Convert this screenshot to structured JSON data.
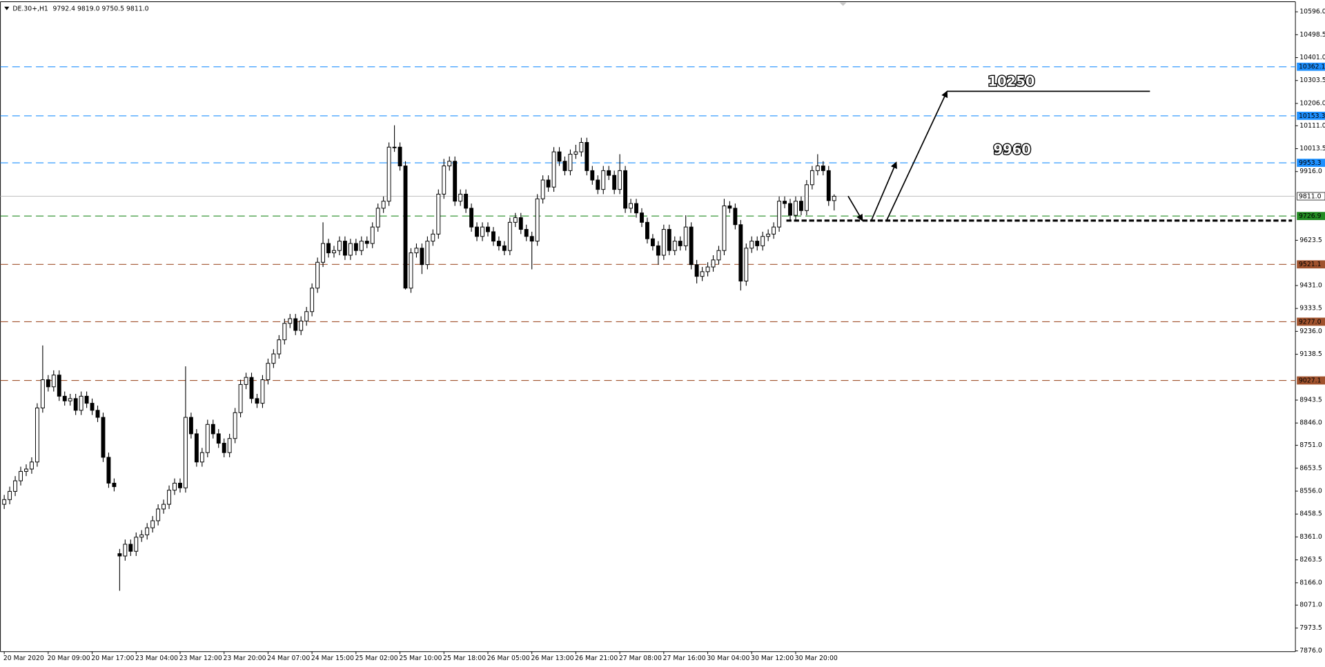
{
  "chart_data": {
    "type": "candlestick",
    "title": "DE.30+,H1",
    "header_ohlc": [
      "9792.4",
      "9819.0",
      "9750.5",
      "9811.0"
    ],
    "annotations": [
      "10250",
      "9960"
    ],
    "ylim": [
      7873,
      10639
    ],
    "yticks": [
      {
        "value": 10596,
        "label": "10596.0"
      },
      {
        "value": 10498.5,
        "label": "10498.5"
      },
      {
        "value": 10401,
        "label": "10401.0"
      },
      {
        "value": 10303.5,
        "label": "10303.5"
      },
      {
        "value": 10206,
        "label": "10206.0"
      },
      {
        "value": 10111,
        "label": "10111.0"
      },
      {
        "value": 10013.5,
        "label": "10013.5"
      },
      {
        "value": 9916,
        "label": "9916.0"
      },
      {
        "value": 9623.5,
        "label": "9623.5"
      },
      {
        "value": 9431,
        "label": "9431.0"
      },
      {
        "value": 9333.5,
        "label": "9333.5"
      },
      {
        "value": 9236,
        "label": "9236.0"
      },
      {
        "value": 9138.5,
        "label": "9138.5"
      },
      {
        "value": 8943.5,
        "label": "8943.5"
      },
      {
        "value": 8846,
        "label": "8846.0"
      },
      {
        "value": 8751,
        "label": "8751.0"
      },
      {
        "value": 8653.5,
        "label": "8653.5"
      },
      {
        "value": 8556,
        "label": "8556.0"
      },
      {
        "value": 8458.5,
        "label": "8458.5"
      },
      {
        "value": 8361,
        "label": "8361.0"
      },
      {
        "value": 8263.5,
        "label": "8263.5"
      },
      {
        "value": 8166,
        "label": "8166.0"
      },
      {
        "value": 8071,
        "label": "8071.0"
      },
      {
        "value": 7973.5,
        "label": "7973.5"
      },
      {
        "value": 7876,
        "label": "7876.0"
      }
    ],
    "grid": false,
    "levels": [
      {
        "value": 10362.1,
        "label": "10362.1",
        "color": "#1e90ff",
        "style": "dashed"
      },
      {
        "value": 10153.3,
        "label": "10153.3",
        "color": "#1e90ff",
        "style": "dashed"
      },
      {
        "value": 9953.3,
        "label": "9953.3",
        "color": "#1e90ff",
        "style": "dashed"
      },
      {
        "value": 9811,
        "label": "9811.0",
        "color": "#c0c0c0",
        "style": "solid"
      },
      {
        "value": 9726.9,
        "label": "9726.9",
        "color": "#228b22",
        "style": "dashed"
      },
      {
        "value": 9521.1,
        "label": "9521.1",
        "color": "#a0522d",
        "style": "dashed"
      },
      {
        "value": 9277,
        "label": "9277.0",
        "color": "#a0522d",
        "style": "dashed"
      },
      {
        "value": 9027.1,
        "label": "9027.1",
        "color": "#a0522d",
        "style": "dashed"
      }
    ],
    "up_color": "#ffffff",
    "down_color": "#000000",
    "categories": [
      "20 Mar 2020",
      null,
      null,
      null,
      null,
      null,
      null,
      null,
      "20 Mar 09:00",
      null,
      null,
      null,
      null,
      null,
      null,
      null,
      "20 Mar 17:00",
      null,
      null,
      null,
      null,
      null,
      null,
      null,
      "23 Mar 04:00",
      null,
      null,
      null,
      null,
      null,
      null,
      null,
      "23 Mar 12:00",
      null,
      null,
      null,
      null,
      null,
      null,
      null,
      "23 Mar 20:00",
      null,
      null,
      null,
      null,
      null,
      null,
      null,
      "24 Mar 07:00",
      null,
      null,
      null,
      null,
      null,
      null,
      null,
      "24 Mar 15:00",
      null,
      null,
      null,
      null,
      null,
      null,
      null,
      "25 Mar 02:00",
      null,
      null,
      null,
      null,
      null,
      null,
      null,
      "25 Mar 10:00",
      null,
      null,
      null,
      null,
      null,
      null,
      null,
      "25 Mar 18:00",
      null,
      null,
      null,
      null,
      null,
      null,
      null,
      "26 Mar 05:00",
      null,
      null,
      null,
      null,
      null,
      null,
      null,
      "26 Mar 13:00",
      null,
      null,
      null,
      null,
      null,
      null,
      null,
      "26 Mar 21:00",
      null,
      null,
      null,
      null,
      null,
      null,
      null,
      "27 Mar 08:00",
      null,
      null,
      null,
      null,
      null,
      null,
      null,
      "27 Mar 16:00",
      null,
      null,
      null,
      null,
      null,
      null,
      null,
      "30 Mar 04:00",
      null,
      null,
      null,
      null,
      null,
      null,
      null,
      "30 Mar 12:00",
      null,
      null,
      null,
      null,
      null,
      null,
      null,
      "30 Mar 20:00",
      null,
      null,
      null,
      null,
      null,
      null,
      null
    ],
    "open": [
      8500,
      8520,
      8555,
      8600,
      8640,
      8650,
      8680,
      8910,
      9030,
      9000,
      9050,
      8960,
      8940,
      8950,
      8900,
      8960,
      8930,
      8900,
      8870,
      8700,
      8590,
      8290,
      8280,
      8330,
      8300,
      8360,
      8370,
      8400,
      8430,
      8480,
      8500,
      8560,
      8590,
      8570,
      8870,
      8800,
      8680,
      8720,
      8840,
      8800,
      8760,
      8720,
      8780,
      8890,
      9010,
      9040,
      8950,
      8930,
      9030,
      9100,
      9140,
      9200,
      9270,
      9290,
      9240,
      9280,
      9320,
      9420,
      9530,
      9610,
      9570,
      9580,
      9620,
      9560,
      9610,
      9580,
      9620,
      9610,
      9680,
      9760,
      9790,
      10020,
      10020,
      9940,
      9420,
      9570,
      9590,
      9520,
      9620,
      9650,
      9820,
      9940,
      9960,
      9790,
      9820,
      9760,
      9680,
      9640,
      9680,
      9660,
      9620,
      9600,
      9580,
      9700,
      9720,
      9670,
      9640,
      9620,
      9800,
      9880,
      9850,
      10000,
      9960,
      9920,
      9990,
      10000,
      10040,
      9920,
      9880,
      9840,
      9920,
      9900,
      9840,
      9920,
      9760,
      9780,
      9740,
      9700,
      9630,
      9600,
      9560,
      9670,
      9580,
      9620,
      9600,
      9680,
      9520,
      9470,
      9490,
      9510,
      9540,
      9580,
      9770,
      9760,
      9690,
      9450,
      9590,
      9620,
      9600,
      9640,
      9650,
      9680,
      9790,
      9780,
      9730,
      9790,
      9750,
      9860,
      9920,
      9940,
      9920,
      9792.4
    ],
    "high": [
      8540,
      8575,
      8620,
      8660,
      8670,
      8700,
      8930,
      9176,
      9050,
      9070,
      9070,
      8980,
      8970,
      8970,
      8980,
      8980,
      8950,
      8920,
      8890,
      8720,
      8610,
      8310,
      8350,
      8350,
      8380,
      8390,
      8420,
      8450,
      8500,
      8520,
      8580,
      8610,
      8610,
      9087,
      8890,
      8820,
      8740,
      8860,
      8860,
      8820,
      8780,
      8800,
      8910,
      9030,
      9060,
      9060,
      8970,
      9050,
      9120,
      9160,
      9220,
      9290,
      9310,
      9310,
      9300,
      9340,
      9440,
      9550,
      9700,
      9630,
      9600,
      9640,
      9640,
      9630,
      9630,
      9640,
      9640,
      9700,
      9780,
      9810,
      10040,
      10113,
      10040,
      9960,
      9590,
      9610,
      9610,
      9640,
      9670,
      9840,
      9970,
      9980,
      9980,
      9840,
      9840,
      9780,
      9700,
      9700,
      9700,
      9680,
      9640,
      9620,
      9720,
      9740,
      9740,
      9690,
      9660,
      9820,
      9900,
      9900,
      10020,
      10020,
      9980,
      10010,
      10030,
      10060,
      10060,
      9940,
      9900,
      9940,
      9940,
      9920,
      9990,
      9940,
      9800,
      9800,
      9760,
      9720,
      9650,
      9620,
      9690,
      9690,
      9640,
      9640,
      9730,
      9700,
      9540,
      9510,
      9530,
      9560,
      9600,
      9800,
      9790,
      9780,
      9710,
      9610,
      9640,
      9640,
      9660,
      9670,
      9700,
      9810,
      9810,
      9800,
      9810,
      9810,
      9880,
      9940,
      9990,
      9960,
      9940,
      9819
    ],
    "low": [
      8480,
      8500,
      8535,
      8580,
      8620,
      8630,
      8660,
      8890,
      8980,
      8980,
      8940,
      8920,
      8920,
      8880,
      8880,
      8910,
      8880,
      8850,
      8680,
      8570,
      8555,
      8132,
      8260,
      8280,
      8280,
      8340,
      8350,
      8380,
      8410,
      8460,
      8480,
      8540,
      8550,
      8550,
      8780,
      8660,
      8660,
      8700,
      8780,
      8740,
      8700,
      8700,
      8760,
      8870,
      8990,
      8930,
      8910,
      8910,
      9010,
      9080,
      9120,
      9180,
      9250,
      9220,
      9220,
      9260,
      9300,
      9400,
      9510,
      9550,
      9550,
      9560,
      9540,
      9540,
      9560,
      9560,
      9590,
      9590,
      9660,
      9740,
      9770,
      10000,
      9920,
      9414,
      9400,
      9550,
      9480,
      9500,
      9600,
      9630,
      9800,
      9920,
      9770,
      9770,
      9740,
      9660,
      9620,
      9620,
      9640,
      9600,
      9580,
      9560,
      9560,
      9680,
      9650,
      9620,
      9500,
      9600,
      9780,
      9830,
      9830,
      9940,
      9900,
      9900,
      9970,
      9980,
      9900,
      9860,
      9820,
      9820,
      9880,
      9820,
      9820,
      9740,
      9740,
      9720,
      9680,
      9610,
      9580,
      9520,
      9540,
      9560,
      9560,
      9580,
      9580,
      9500,
      9440,
      9450,
      9470,
      9490,
      9520,
      9560,
      9740,
      9670,
      9410,
      9430,
      9570,
      9580,
      9580,
      9620,
      9630,
      9660,
      9760,
      9710,
      9710,
      9730,
      9730,
      9840,
      9900,
      9900,
      9770,
      9750.5
    ],
    "close": [
      8520,
      8555,
      8600,
      8640,
      8650,
      8680,
      8910,
      9030,
      9000,
      9050,
      8960,
      8940,
      8950,
      8900,
      8960,
      8930,
      8900,
      8870,
      8700,
      8590,
      8575,
      8280,
      8330,
      8300,
      8360,
      8370,
      8400,
      8430,
      8480,
      8500,
      8560,
      8590,
      8570,
      8870,
      8800,
      8680,
      8720,
      8840,
      8800,
      8760,
      8720,
      8780,
      8890,
      9010,
      9040,
      8950,
      8930,
      9030,
      9100,
      9140,
      9200,
      9270,
      9290,
      9240,
      9280,
      9320,
      9420,
      9530,
      9610,
      9570,
      9580,
      9620,
      9560,
      9610,
      9580,
      9620,
      9610,
      9680,
      9760,
      9790,
      10020,
      10020,
      9940,
      9420,
      9570,
      9590,
      9520,
      9620,
      9650,
      9820,
      9940,
      9960,
      9790,
      9820,
      9760,
      9680,
      9640,
      9680,
      9660,
      9620,
      9600,
      9580,
      9700,
      9720,
      9670,
      9640,
      9620,
      9800,
      9880,
      9850,
      10000,
      9960,
      9920,
      9990,
      10000,
      10040,
      9920,
      9880,
      9840,
      9920,
      9900,
      9840,
      9920,
      9760,
      9780,
      9740,
      9700,
      9630,
      9600,
      9560,
      9670,
      9580,
      9620,
      9600,
      9680,
      9520,
      9470,
      9490,
      9510,
      9540,
      9580,
      9770,
      9760,
      9690,
      9450,
      9590,
      9620,
      9600,
      9640,
      9650,
      9680,
      9790,
      9780,
      9730,
      9790,
      9750,
      9860,
      9920,
      9940,
      9920,
      9792.4,
      9811
    ]
  }
}
